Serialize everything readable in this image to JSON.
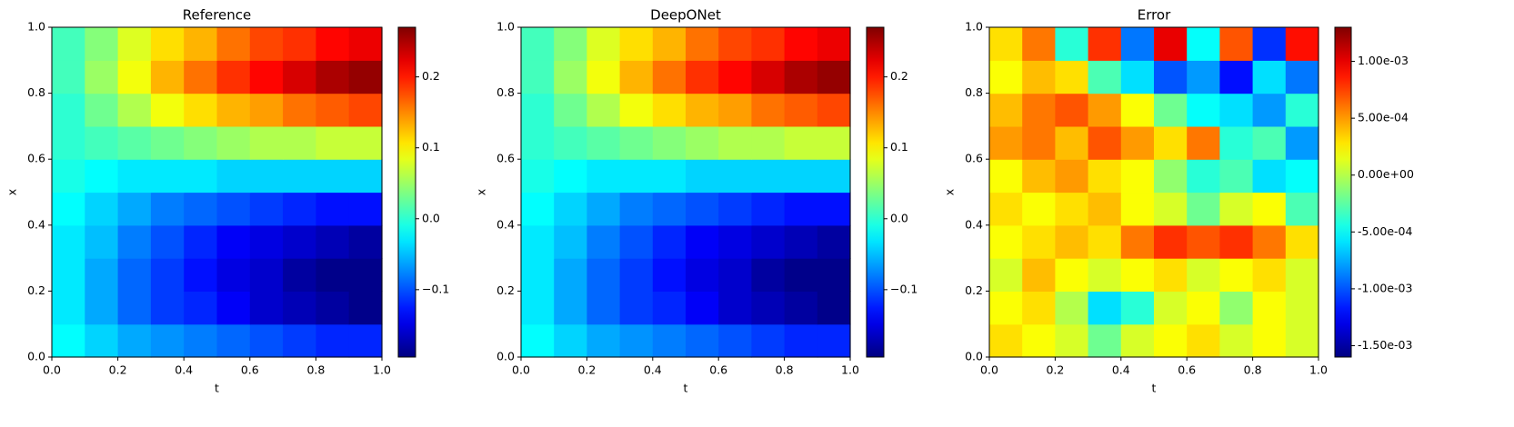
{
  "chart_data": [
    {
      "type": "heatmap",
      "title": "Reference",
      "x_label": "t",
      "y_label": "x",
      "colormap": "jet",
      "xlim": [
        0,
        1
      ],
      "ylim": [
        0,
        1
      ],
      "xticks": [
        {
          "value": 0,
          "label": "0.0"
        },
        0.2,
        0.4,
        0.6,
        0.8,
        {
          "value": 1,
          "label": "1.0"
        }
      ],
      "yticks": [
        {
          "value": 0,
          "label": "0.0"
        },
        0.2,
        0.4,
        0.6,
        0.8,
        {
          "value": 1,
          "label": "1.0"
        }
      ],
      "clim": [
        -0.195,
        0.27
      ],
      "cticks": [
        {
          "value": -0.1,
          "label": "−0.1"
        },
        {
          "value": 0,
          "label": "0.0"
        },
        0.1,
        0.2
      ],
      "x": [
        0.05,
        0.15,
        0.25,
        0.35,
        0.45,
        0.55,
        0.65,
        0.75,
        0.85,
        0.95
      ],
      "y": [
        0.05,
        0.15,
        0.25,
        0.35,
        0.45,
        0.55,
        0.65,
        0.75,
        0.85,
        0.95
      ],
      "values": [
        [
          -0.02,
          -0.04,
          -0.06,
          -0.07,
          -0.08,
          -0.09,
          -0.1,
          -0.11,
          -0.12,
          -0.12
        ],
        [
          -0.03,
          -0.06,
          -0.09,
          -0.11,
          -0.12,
          -0.14,
          -0.16,
          -0.17,
          -0.18,
          -0.19
        ],
        [
          -0.03,
          -0.06,
          -0.09,
          -0.11,
          -0.13,
          -0.15,
          -0.16,
          -0.18,
          -0.19,
          -0.19
        ],
        [
          -0.03,
          -0.05,
          -0.08,
          -0.1,
          -0.12,
          -0.14,
          -0.15,
          -0.16,
          -0.17,
          -0.18
        ],
        [
          -0.02,
          -0.04,
          -0.06,
          -0.08,
          -0.09,
          -0.1,
          -0.11,
          -0.12,
          -0.13,
          -0.13
        ],
        [
          -0.01,
          -0.02,
          -0.03,
          -0.03,
          -0.03,
          -0.04,
          -0.04,
          -0.04,
          -0.04,
          -0.04
        ],
        [
          0,
          0.01,
          0.02,
          0.03,
          0.04,
          0.05,
          0.06,
          0.06,
          0.07,
          0.07
        ],
        [
          0,
          0.03,
          0.06,
          0.09,
          0.11,
          0.13,
          0.14,
          0.16,
          0.17,
          0.18
        ],
        [
          0.01,
          0.05,
          0.09,
          0.13,
          0.16,
          0.19,
          0.21,
          0.23,
          0.25,
          0.26
        ],
        [
          0.01,
          0.04,
          0.08,
          0.11,
          0.13,
          0.16,
          0.18,
          0.19,
          0.21,
          0.22
        ]
      ]
    },
    {
      "type": "heatmap",
      "title": "DeepONet",
      "x_label": "t",
      "y_label": "x",
      "colormap": "jet",
      "xlim": [
        0,
        1
      ],
      "ylim": [
        0,
        1
      ],
      "xticks": [
        {
          "value": 0,
          "label": "0.0"
        },
        0.2,
        0.4,
        0.6,
        0.8,
        {
          "value": 1,
          "label": "1.0"
        }
      ],
      "yticks": [
        {
          "value": 0,
          "label": "0.0"
        },
        0.2,
        0.4,
        0.6,
        0.8,
        {
          "value": 1,
          "label": "1.0"
        }
      ],
      "clim": [
        -0.195,
        0.27
      ],
      "cticks": [
        {
          "value": -0.1,
          "label": "−0.1"
        },
        {
          "value": 0,
          "label": "0.0"
        },
        0.1,
        0.2
      ],
      "x": [
        0.05,
        0.15,
        0.25,
        0.35,
        0.45,
        0.55,
        0.65,
        0.75,
        0.85,
        0.95
      ],
      "y": [
        0.05,
        0.15,
        0.25,
        0.35,
        0.45,
        0.55,
        0.65,
        0.75,
        0.85,
        0.95
      ],
      "values": [
        [
          -0.02,
          -0.04,
          -0.06,
          -0.07,
          -0.08,
          -0.09,
          -0.1,
          -0.11,
          -0.12,
          -0.12
        ],
        [
          -0.03,
          -0.06,
          -0.09,
          -0.11,
          -0.12,
          -0.14,
          -0.16,
          -0.17,
          -0.18,
          -0.19
        ],
        [
          -0.03,
          -0.06,
          -0.09,
          -0.11,
          -0.13,
          -0.15,
          -0.16,
          -0.18,
          -0.19,
          -0.19
        ],
        [
          -0.03,
          -0.05,
          -0.08,
          -0.1,
          -0.12,
          -0.14,
          -0.15,
          -0.16,
          -0.17,
          -0.18
        ],
        [
          -0.02,
          -0.04,
          -0.06,
          -0.08,
          -0.09,
          -0.1,
          -0.11,
          -0.12,
          -0.13,
          -0.13
        ],
        [
          -0.01,
          -0.02,
          -0.03,
          -0.03,
          -0.03,
          -0.04,
          -0.04,
          -0.04,
          -0.04,
          -0.04
        ],
        [
          0,
          0.01,
          0.02,
          0.03,
          0.04,
          0.05,
          0.06,
          0.06,
          0.07,
          0.07
        ],
        [
          0,
          0.03,
          0.06,
          0.09,
          0.11,
          0.13,
          0.14,
          0.16,
          0.17,
          0.18
        ],
        [
          0.01,
          0.05,
          0.09,
          0.13,
          0.16,
          0.19,
          0.21,
          0.23,
          0.25,
          0.26
        ],
        [
          0.01,
          0.04,
          0.08,
          0.11,
          0.13,
          0.16,
          0.18,
          0.19,
          0.21,
          0.22
        ]
      ]
    },
    {
      "type": "heatmap",
      "title": "Error",
      "x_label": "t",
      "y_label": "x",
      "colormap": "jet",
      "xlim": [
        0,
        1
      ],
      "ylim": [
        0,
        1
      ],
      "xticks": [
        {
          "value": 0,
          "label": "0.0"
        },
        0.2,
        0.4,
        0.6,
        0.8,
        {
          "value": 1,
          "label": "1.0"
        }
      ],
      "yticks": [
        {
          "value": 0,
          "label": "0.0"
        },
        0.2,
        0.4,
        0.6,
        0.8,
        {
          "value": 1,
          "label": "1.0"
        }
      ],
      "clim": [
        -0.0016,
        0.0013
      ],
      "cticks": [
        {
          "value": -0.0015,
          "label": "-1.50e-03"
        },
        {
          "value": -0.001,
          "label": "-1.00e-03"
        },
        {
          "value": -0.0005,
          "label": "-5.00e-04"
        },
        {
          "value": 0,
          "label": "0.00e+00"
        },
        {
          "value": 0.0005,
          "label": "5.00e-04"
        },
        {
          "value": 0.001,
          "label": "1.00e-03"
        }
      ],
      "x": [
        0.05,
        0.15,
        0.25,
        0.35,
        0.45,
        0.55,
        0.65,
        0.75,
        0.85,
        0.95
      ],
      "y": [
        0.05,
        0.15,
        0.25,
        0.35,
        0.45,
        0.55,
        0.65,
        0.75,
        0.85,
        0.95
      ],
      "values": [
        [
          0.0003,
          0.0002,
          0.0001,
          -0.0002,
          0.0001,
          0.0002,
          0.0003,
          0.0001,
          0.0002,
          0.0001
        ],
        [
          0.0002,
          0.0003,
          0,
          -0.0006,
          -0.0004,
          0.0001,
          0.0002,
          -0.0001,
          0.0002,
          0.0001
        ],
        [
          0.0001,
          0.0004,
          0.0002,
          0.0001,
          0.0002,
          0.0003,
          0.0001,
          0.0002,
          0.0003,
          0.0001
        ],
        [
          0.0002,
          0.0003,
          0.0004,
          0.0003,
          0.0006,
          0.0008,
          0.0007,
          0.0008,
          0.0006,
          0.0003
        ],
        [
          0.0003,
          0.0002,
          0.0003,
          0.0004,
          0.0002,
          0.0001,
          -0.0002,
          0.0001,
          0.0002,
          -0.0003
        ],
        [
          0.0002,
          0.0004,
          0.0005,
          0.0003,
          0.0002,
          -0.0001,
          -0.0004,
          -0.0003,
          -0.0006,
          -0.0005
        ],
        [
          0.0005,
          0.0006,
          0.0004,
          0.0007,
          0.0005,
          0.0003,
          0.0006,
          -0.0004,
          -0.0003,
          -0.0008
        ],
        [
          0.0004,
          0.0006,
          0.0007,
          0.0005,
          0.0002,
          -0.0002,
          -0.0005,
          -0.0006,
          -0.0008,
          -0.0004
        ],
        [
          0.0002,
          0.0004,
          0.0003,
          -0.0003,
          -0.0006,
          -0.001,
          -0.0008,
          -0.0012,
          -0.0006,
          -0.0009
        ],
        [
          0.0003,
          0.0006,
          -0.0004,
          0.0008,
          -0.0009,
          0.001,
          -0.0005,
          0.0007,
          -0.0011,
          0.0009
        ]
      ]
    }
  ]
}
